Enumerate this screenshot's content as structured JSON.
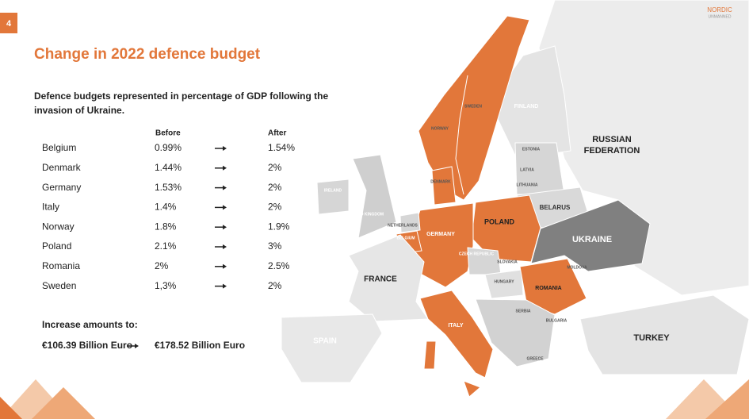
{
  "page_number": "4",
  "logo": [
    "NORDIC",
    "UNMANNED"
  ],
  "title": "Change in 2022 defence budget",
  "subtitle": [
    "Defence budgets represented in percentage of GDP following the",
    "invasion of Ukraine."
  ],
  "table": {
    "headers": [
      "Before",
      "After"
    ],
    "rows": [
      [
        "Belgium",
        "0.99%",
        "1.54%"
      ],
      [
        "Denmark",
        "1.44%",
        "2%"
      ],
      [
        "Germany",
        "1.53%",
        "2%"
      ],
      [
        "Italy",
        "1.4%",
        "2%"
      ],
      [
        "Norway",
        "1.8%",
        "1.9%"
      ],
      [
        "Poland",
        "2.1%",
        "3%"
      ],
      [
        "Romania",
        "2%",
        "2.5%"
      ],
      [
        "Sweden",
        "1,3%",
        "2%"
      ]
    ]
  },
  "increase": {
    "label": "Increase amounts to:",
    "before": "€106.39 Billion Euro",
    "after": "€178.52 Billion Euro"
  },
  "map_labels": {
    "norway": "NORWAY",
    "sweden": "SWEDEN",
    "finland": "FINLAND",
    "russia": [
      "RUSSIAN",
      "FEDERATION"
    ],
    "estonia": "ESTONIA",
    "latvia": "LATVIA",
    "lithuania": "LITHUANIA",
    "belarus": "BELARUS",
    "poland": "POLAND",
    "germany": "GERMANY",
    "denmark": "DENMARK",
    "ireland": "IRELAND",
    "uk": "UNITED KINGDOM",
    "netherlands": "NETHERLANDS",
    "belgium": "BELGIUM",
    "france": "FRANCE",
    "czech": "CZECH REPUBLIC",
    "slovakia": "SLOVAKIA",
    "hungary": "HUNGARY",
    "ukraine": "UKRAINE",
    "moldova": "MOLDOVA",
    "romania": "ROMANIA",
    "serbia": "SERBIA",
    "bulgaria": "BULGARIA",
    "italy": "ITALY",
    "spain": "SPAIN",
    "turkey": "TURKEY",
    "greece": "GREECE"
  }
}
